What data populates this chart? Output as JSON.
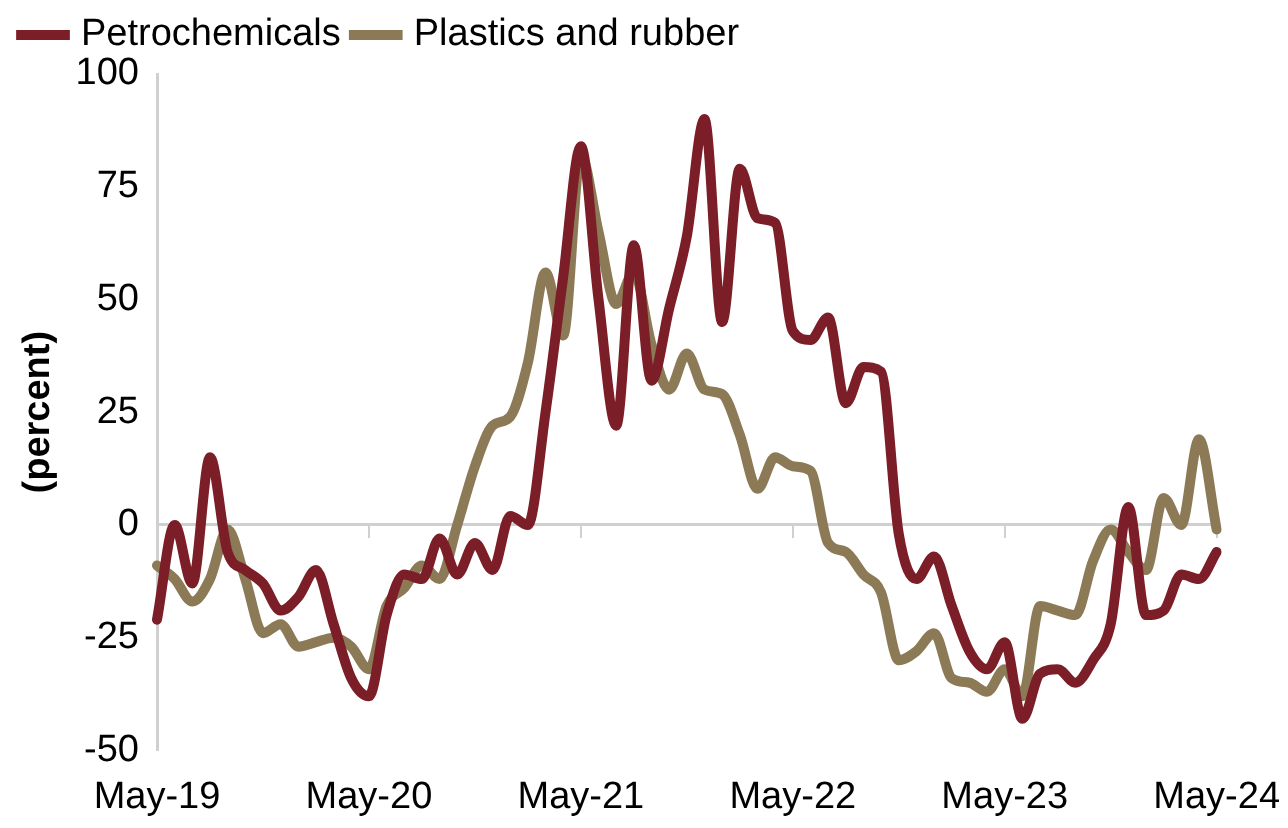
{
  "chart_data": {
    "type": "line",
    "ylabel": "(percent)",
    "categories": [
      "May-19",
      null,
      null,
      null,
      null,
      null,
      null,
      null,
      null,
      null,
      null,
      null,
      "May-20",
      null,
      null,
      null,
      null,
      null,
      null,
      null,
      null,
      null,
      null,
      null,
      "May-21",
      null,
      null,
      null,
      null,
      null,
      null,
      null,
      null,
      null,
      null,
      null,
      "May-22",
      null,
      null,
      null,
      null,
      null,
      null,
      null,
      null,
      null,
      null,
      null,
      "May-23",
      null,
      null,
      null,
      null,
      null,
      null,
      null,
      null,
      null,
      null,
      null,
      "May-24"
    ],
    "series": [
      {
        "name": "Petrochemicals",
        "color": "#7b1e28",
        "values": [
          -21,
          0,
          -13,
          15,
          -6,
          -10,
          -13,
          -19,
          -16,
          -10,
          -22,
          -34,
          -38,
          -20,
          -11,
          -12,
          -3,
          -11,
          -4,
          -10,
          2,
          0,
          25,
          55,
          84,
          50,
          22,
          62,
          32,
          48,
          64,
          90,
          45,
          79,
          68,
          67,
          43,
          41,
          46,
          27,
          35,
          34,
          -2,
          -12,
          -7,
          -18,
          -28,
          -32,
          -26,
          -43,
          -33,
          -32,
          -35,
          -30,
          -22,
          4,
          -20,
          -19,
          -11,
          -12,
          -6
        ]
      },
      {
        "name": "Plastics and rubber",
        "color": "#8c7a56",
        "values": [
          -9,
          -12,
          -17,
          -12,
          -1,
          -12,
          -24,
          -22,
          -27,
          -26,
          -25,
          -27,
          -32,
          -18,
          -14,
          -9,
          -12,
          0,
          13,
          22,
          24,
          36,
          56,
          42,
          82,
          65,
          49,
          56,
          40,
          30,
          38,
          30,
          29,
          20,
          8,
          15,
          13,
          12,
          -4,
          -6,
          -11,
          -15,
          -30,
          -28,
          -24,
          -34,
          -35,
          -37,
          -32,
          -38,
          -18,
          -19,
          -20,
          -8,
          -1,
          -6,
          -10,
          6,
          0,
          19,
          -1
        ]
      }
    ],
    "ylim": [
      -50,
      100
    ],
    "yticks": [
      -50,
      -25,
      0,
      25,
      50,
      75,
      100
    ],
    "legend": "top",
    "marker": "none",
    "line_style": "solid"
  }
}
